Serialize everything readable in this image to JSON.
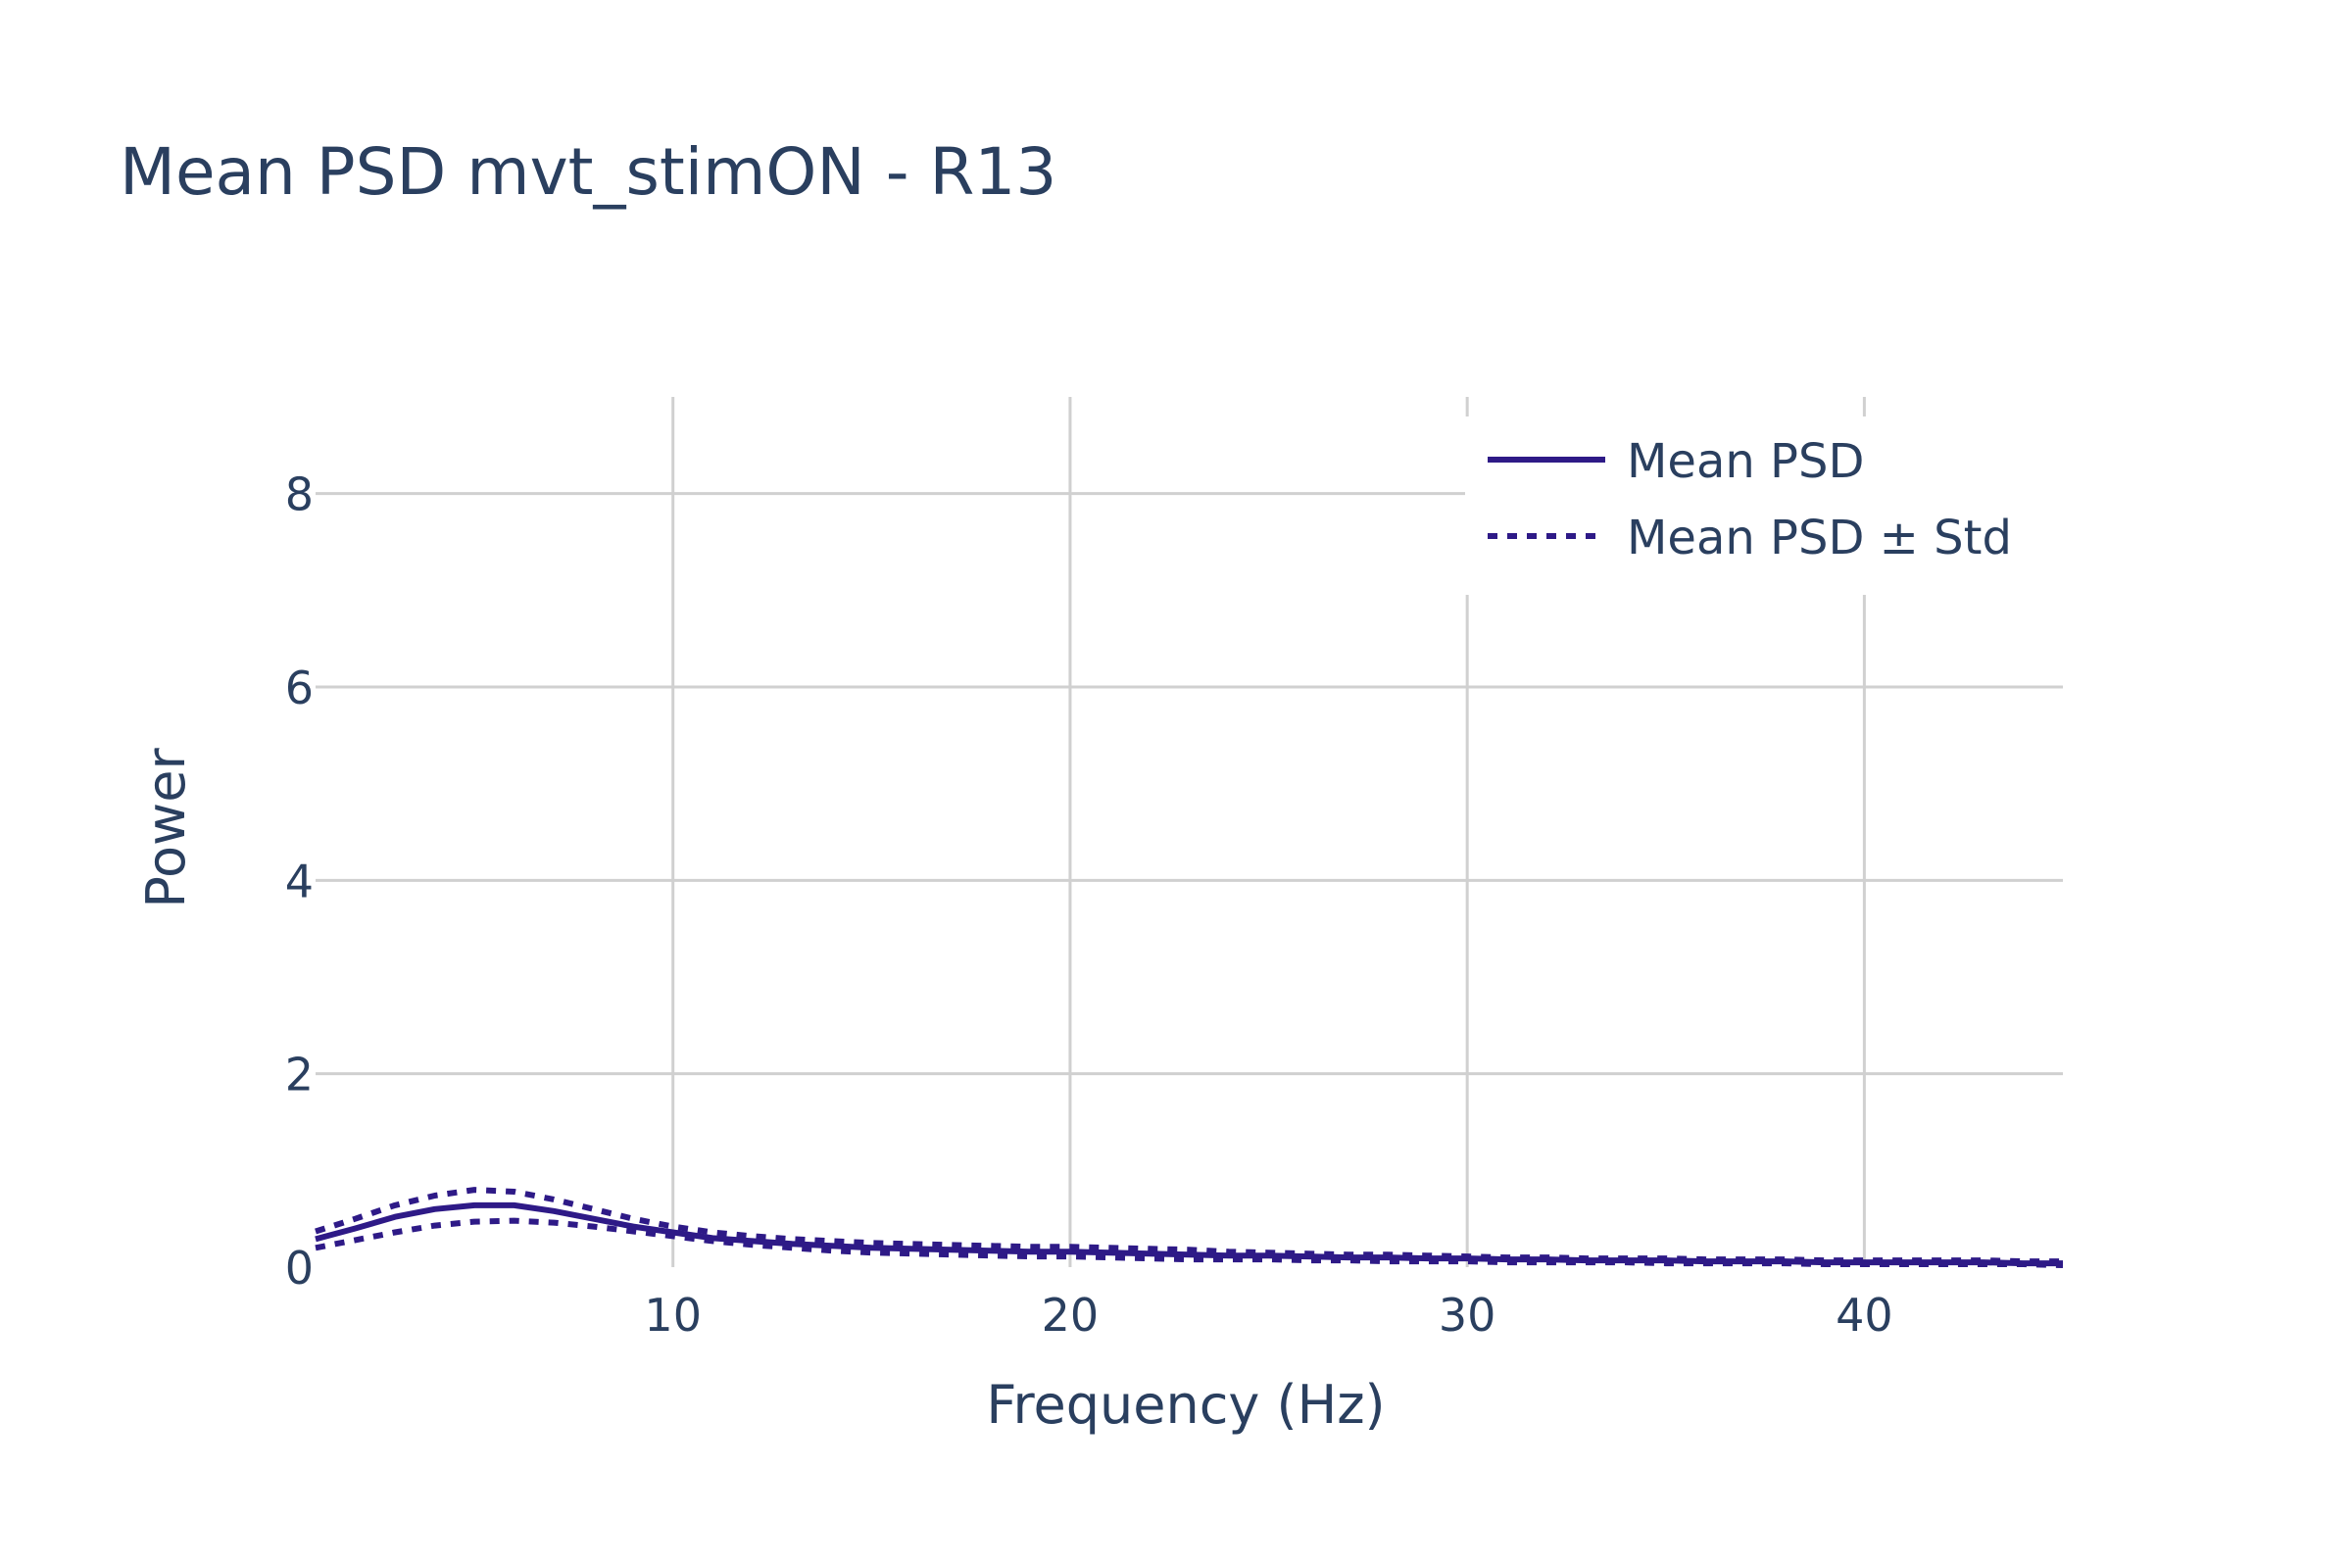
{
  "chart_data": {
    "type": "line",
    "title": "Mean PSD mvt_stimON - R13",
    "xlabel": "Frequency (Hz)",
    "ylabel": "Power",
    "xlim": [
      1,
      45
    ],
    "ylim": [
      0,
      9
    ],
    "x_ticks": [
      10,
      20,
      30,
      40
    ],
    "y_ticks": [
      0,
      2,
      4,
      6,
      8
    ],
    "grid": true,
    "legend_position": "top-right",
    "line_color": "#2e1a87",
    "x": [
      1,
      2,
      3,
      4,
      5,
      6,
      7,
      8,
      9,
      10,
      11,
      12,
      13,
      14,
      15,
      16,
      17,
      18,
      19,
      20,
      21,
      22,
      23,
      24,
      25,
      26,
      27,
      28,
      29,
      30,
      31,
      32,
      33,
      34,
      35,
      36,
      37,
      38,
      39,
      40,
      41,
      42,
      43,
      44,
      45
    ],
    "series": [
      {
        "name": "Mean PSD",
        "style": "solid",
        "values": [
          0.29,
          0.4,
          0.52,
          0.6,
          0.64,
          0.64,
          0.58,
          0.5,
          0.42,
          0.36,
          0.3,
          0.27,
          0.24,
          0.22,
          0.2,
          0.19,
          0.18,
          0.17,
          0.16,
          0.16,
          0.15,
          0.14,
          0.13,
          0.12,
          0.12,
          0.11,
          0.1,
          0.1,
          0.09,
          0.09,
          0.08,
          0.08,
          0.07,
          0.07,
          0.07,
          0.06,
          0.06,
          0.06,
          0.05,
          0.05,
          0.05,
          0.05,
          0.05,
          0.04,
          0.04
        ]
      },
      {
        "name": "Mean PSD ± Std",
        "style": "dotted",
        "legend": true,
        "values": [
          0.37,
          0.5,
          0.64,
          0.74,
          0.8,
          0.78,
          0.7,
          0.6,
          0.5,
          0.42,
          0.36,
          0.32,
          0.29,
          0.27,
          0.25,
          0.24,
          0.23,
          0.22,
          0.21,
          0.21,
          0.2,
          0.19,
          0.18,
          0.16,
          0.15,
          0.14,
          0.13,
          0.13,
          0.12,
          0.11,
          0.1,
          0.1,
          0.09,
          0.09,
          0.09,
          0.08,
          0.08,
          0.08,
          0.07,
          0.07,
          0.07,
          0.07,
          0.07,
          0.06,
          0.06
        ]
      },
      {
        "name": "Mean PSD ± Std",
        "style": "dotted",
        "legend": false,
        "values": [
          0.2,
          0.28,
          0.36,
          0.43,
          0.47,
          0.48,
          0.46,
          0.42,
          0.37,
          0.32,
          0.27,
          0.23,
          0.2,
          0.17,
          0.15,
          0.14,
          0.13,
          0.12,
          0.11,
          0.11,
          0.1,
          0.09,
          0.08,
          0.08,
          0.08,
          0.07,
          0.07,
          0.06,
          0.06,
          0.06,
          0.05,
          0.05,
          0.05,
          0.05,
          0.04,
          0.04,
          0.04,
          0.04,
          0.03,
          0.03,
          0.03,
          0.03,
          0.03,
          0.03,
          0.02
        ]
      }
    ]
  }
}
